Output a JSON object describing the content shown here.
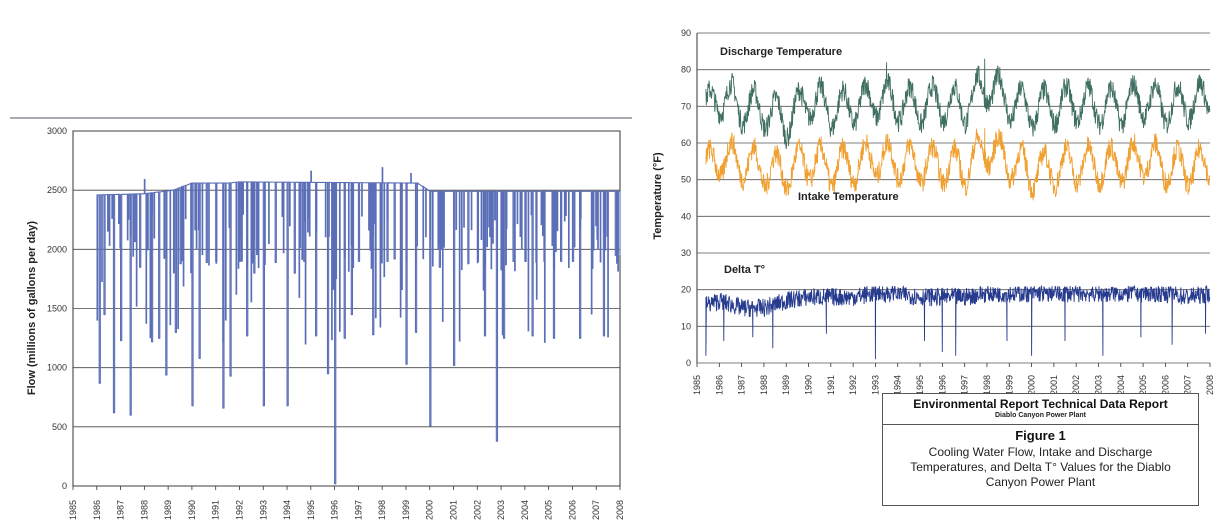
{
  "chart_data": [
    {
      "type": "line",
      "title": "",
      "xlabel": "",
      "ylabel": "Flow (millions of gallons per day)",
      "xlim": [
        1985,
        2008
      ],
      "ylim": [
        0,
        3000
      ],
      "y_ticks": [
        0,
        500,
        1000,
        1500,
        2000,
        2500,
        3000
      ],
      "x_tick_labels": [
        "1985",
        "1986",
        "1987",
        "1988",
        "1989",
        "1990",
        "1991",
        "1992",
        "1993",
        "1994",
        "1995",
        "1996",
        "1997",
        "1998",
        "1999",
        "2000",
        "2001",
        "2002",
        "2003",
        "2004",
        "2005",
        "2006",
        "2007",
        "2008"
      ],
      "grid": "horizontal",
      "series_color": "#5b6fb8",
      "series": [
        {
          "name": "",
          "baseline": [
            [
              1986.0,
              2460
            ],
            [
              1988.0,
              2470
            ],
            [
              1989.2,
              2500
            ],
            [
              1990.0,
              2560
            ],
            [
              1991.5,
              2560
            ],
            [
              1992.0,
              2570
            ],
            [
              1999.5,
              2560
            ],
            [
              2000.0,
              2490
            ],
            [
              2008.0,
              2490
            ]
          ],
          "dips": [
            [
              1986.1,
              870
            ],
            [
              1986.3,
              1450
            ],
            [
              1986.7,
              620
            ],
            [
              1987.0,
              1230
            ],
            [
              1987.4,
              600
            ],
            [
              1987.8,
              1850
            ],
            [
              1988.3,
              1220
            ],
            [
              1988.6,
              1250
            ],
            [
              1988.9,
              940
            ],
            [
              1989.3,
              1300
            ],
            [
              1989.5,
              1880
            ],
            [
              1990.0,
              680
            ],
            [
              1990.3,
              1080
            ],
            [
              1990.6,
              1890
            ],
            [
              1991.0,
              1900
            ],
            [
              1991.3,
              660
            ],
            [
              1991.6,
              930
            ],
            [
              1992.0,
              1900
            ],
            [
              1992.3,
              1270
            ],
            [
              1992.6,
              1800
            ],
            [
              1993.0,
              680
            ],
            [
              1993.5,
              1890
            ],
            [
              1994.0,
              680
            ],
            [
              1994.3,
              1800
            ],
            [
              1994.7,
              1900
            ],
            [
              1995.2,
              1270
            ],
            [
              1995.7,
              950
            ],
            [
              1996.0,
              20
            ],
            [
              1996.4,
              1250
            ],
            [
              1996.7,
              1450
            ],
            [
              1997.0,
              1900
            ],
            [
              1997.6,
              1280
            ],
            [
              1998.2,
              1900
            ],
            [
              1998.5,
              1920
            ],
            [
              1999.0,
              1030
            ],
            [
              1999.4,
              1300
            ],
            [
              2000.0,
              510
            ],
            [
              2000.4,
              1850
            ],
            [
              2001.0,
              1020
            ],
            [
              2001.6,
              1880
            ],
            [
              2002.0,
              1900
            ],
            [
              2002.3,
              1270
            ],
            [
              2002.8,
              380
            ],
            [
              2003.1,
              1250
            ],
            [
              2003.5,
              1900
            ],
            [
              2004.0,
              1900
            ],
            [
              2004.3,
              1270
            ],
            [
              2004.8,
              1900
            ],
            [
              2005.2,
              1250
            ],
            [
              2005.5,
              1900
            ],
            [
              2006.0,
              1900
            ],
            [
              2006.3,
              1250
            ],
            [
              2006.8,
              1900
            ],
            [
              2007.3,
              1270
            ],
            [
              2007.8,
              1950
            ]
          ],
          "spikes": [
            [
              1988.0,
              2590
            ],
            [
              1995.0,
              2660
            ],
            [
              1998.0,
              2690
            ],
            [
              1999.2,
              2640
            ]
          ]
        }
      ]
    },
    {
      "type": "line",
      "title": "",
      "xlabel": "",
      "ylabel": "Temperature (°F)",
      "xlim": [
        1985,
        2008
      ],
      "ylim": [
        0,
        90
      ],
      "y_ticks": [
        0,
        10,
        20,
        30,
        40,
        50,
        60,
        70,
        80,
        90
      ],
      "x_tick_labels": [
        "1985",
        "1986",
        "1987",
        "1988",
        "1989",
        "1990",
        "1991",
        "1992",
        "1993",
        "1994",
        "1995",
        "1996",
        "1997",
        "1998",
        "1999",
        "2000",
        "2001",
        "2002",
        "2003",
        "2004",
        "2005",
        "2006",
        "2007",
        "2008"
      ],
      "grid": "horizontal",
      "series": [
        {
          "name": "Discharge Temperature",
          "color": "#3f6e62",
          "annual_points": [
            [
              1985.5,
              69
            ],
            [
              1986,
              73
            ],
            [
              1987,
              70
            ],
            [
              1988,
              69
            ],
            [
              1989,
              66
            ],
            [
              1990,
              72
            ],
            [
              1991,
              69
            ],
            [
              1992,
              70
            ],
            [
              1993,
              72
            ],
            [
              1994,
              71
            ],
            [
              1995,
              70
            ],
            [
              1996,
              71
            ],
            [
              1997,
              70
            ],
            [
              1998,
              76
            ],
            [
              1999,
              71
            ],
            [
              2000,
              69
            ],
            [
              2001,
              70
            ],
            [
              2002,
              71
            ],
            [
              2003,
              70
            ],
            [
              2004,
              70
            ],
            [
              2005,
              72
            ],
            [
              2006,
              70
            ],
            [
              2007,
              71
            ],
            [
              2008,
              72
            ]
          ],
          "peaks": [
            [
              1993.5,
              82
            ],
            [
              1997.9,
              83
            ],
            [
              1998.4,
              80
            ]
          ]
        },
        {
          "name": "Intake Temperature",
          "color": "#f0a030",
          "annual_points": [
            [
              1985.5,
              53
            ],
            [
              1986,
              56
            ],
            [
              1987,
              55
            ],
            [
              1988,
              53
            ],
            [
              1989,
              52
            ],
            [
              1990,
              55
            ],
            [
              1991,
              53
            ],
            [
              1992,
              54
            ],
            [
              1993,
              56
            ],
            [
              1994,
              55
            ],
            [
              1995,
              54
            ],
            [
              1996,
              54
            ],
            [
              1997,
              53
            ],
            [
              1998,
              59
            ],
            [
              1999,
              55
            ],
            [
              2000,
              52
            ],
            [
              2001,
              53
            ],
            [
              2002,
              54
            ],
            [
              2003,
              54
            ],
            [
              2004,
              54
            ],
            [
              2005,
              56
            ],
            [
              2006,
              54
            ],
            [
              2007,
              53
            ],
            [
              2008,
              54
            ]
          ],
          "peaks": [
            [
              1997.9,
              64
            ]
          ]
        },
        {
          "name": "Delta T°",
          "color": "#263a8e",
          "annual_points": [
            [
              1985.5,
              16
            ],
            [
              1986,
              17
            ],
            [
              1987,
              15
            ],
            [
              1988,
              15
            ],
            [
              1989,
              17
            ],
            [
              1990,
              18
            ],
            [
              1991,
              18
            ],
            [
              1992,
              18
            ],
            [
              1993,
              19
            ],
            [
              1994,
              19
            ],
            [
              1995,
              18
            ],
            [
              1996,
              18
            ],
            [
              1997,
              18
            ],
            [
              1998,
              19
            ],
            [
              1999,
              19
            ],
            [
              2000,
              19
            ],
            [
              2001,
              19
            ],
            [
              2002,
              19
            ],
            [
              2003,
              19
            ],
            [
              2004,
              19
            ],
            [
              2005,
              19
            ],
            [
              2006,
              19
            ],
            [
              2007,
              18
            ],
            [
              2008,
              19
            ]
          ],
          "dips": [
            [
              1985.4,
              2
            ],
            [
              1986.2,
              6
            ],
            [
              1987.5,
              7
            ],
            [
              1988.4,
              4
            ],
            [
              1990.8,
              8
            ],
            [
              1993.0,
              1
            ],
            [
              1995.2,
              6
            ],
            [
              1996.0,
              3
            ],
            [
              1996.6,
              2
            ],
            [
              1998.9,
              6
            ],
            [
              2000.0,
              2
            ],
            [
              2001.5,
              6
            ],
            [
              2003.2,
              2
            ],
            [
              2004.9,
              7
            ],
            [
              2006.3,
              5
            ],
            [
              2007.8,
              8
            ]
          ]
        }
      ]
    }
  ],
  "caption": {
    "title": "Environmental Report Technical Data Report",
    "subtitle": "Diablo Canyon Power Plant",
    "figure": "Figure 1",
    "description": "Cooling Water Flow, Intake and Discharge Temperatures, and Delta T° Values for the Diablo Canyon Power Plant"
  }
}
